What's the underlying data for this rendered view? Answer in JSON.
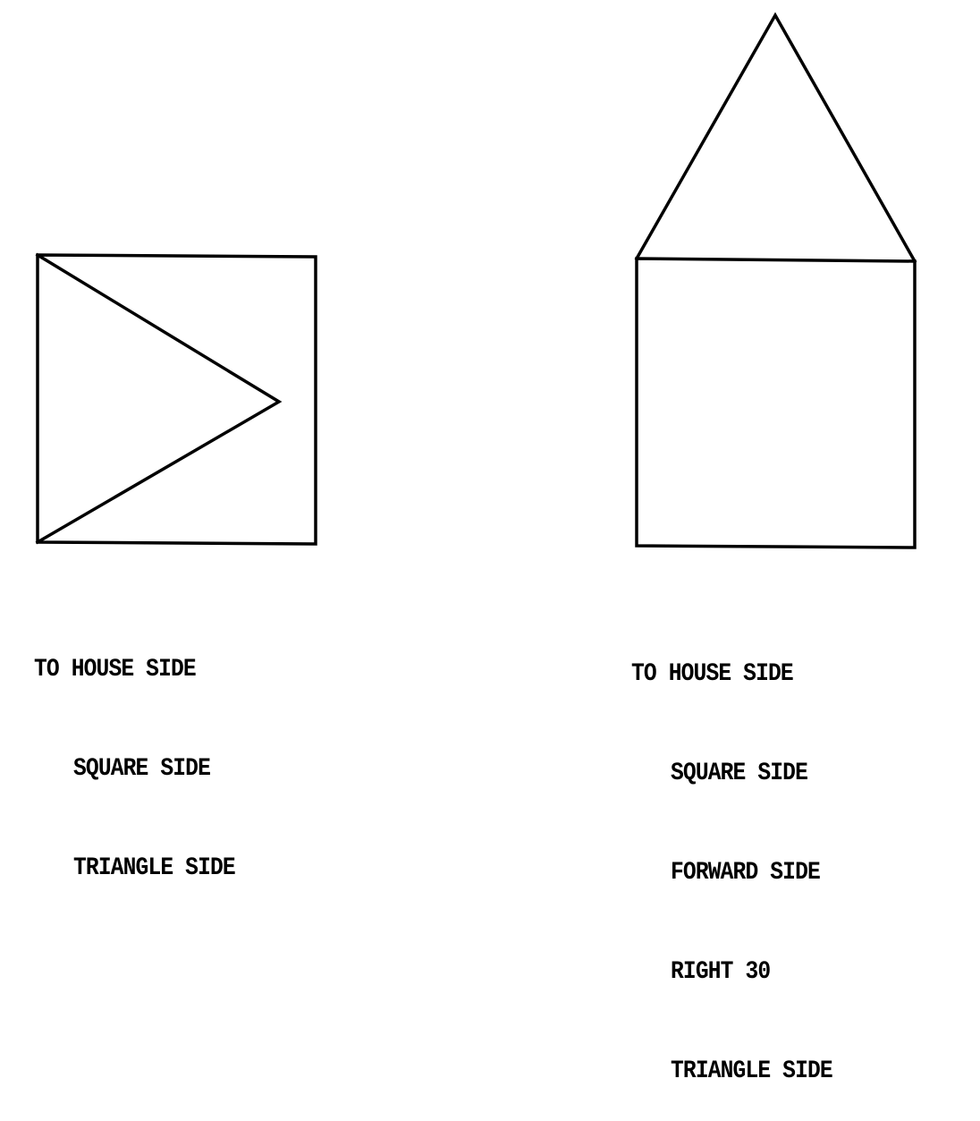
{
  "left_program": {
    "header": "TO HOUSE SIDE",
    "body": [
      "SQUARE SIDE",
      "TRIANGLE SIDE"
    ]
  },
  "right_program": {
    "header": "TO HOUSE SIDE",
    "body": [
      "SQUARE SIDE",
      "FORWARD SIDE",
      "RIGHT 30",
      "TRIANGLE SIDE"
    ]
  },
  "colors": {
    "ink": "#000000",
    "background": "#ffffff"
  }
}
